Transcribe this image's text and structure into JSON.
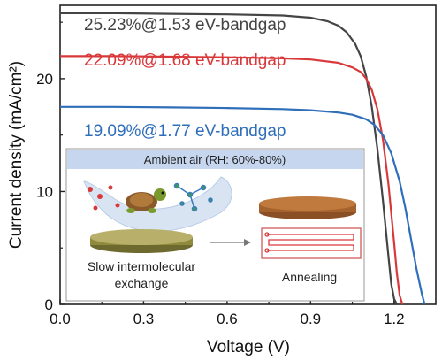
{
  "chart_data": {
    "type": "line",
    "xlabel": "Voltage (V)",
    "ylabel": "Current density (mA/cm²)",
    "xlim": [
      0.0,
      1.35
    ],
    "ylim": [
      0,
      26.5
    ],
    "xticks": [
      0.0,
      0.3,
      0.6,
      0.9,
      1.2
    ],
    "xtick_labels": [
      "0.0",
      "0.3",
      "0.6",
      "0.9",
      "1.2"
    ],
    "yticks": [
      0,
      10,
      20
    ],
    "ytick_labels": [
      "0",
      "10",
      "20"
    ],
    "grid": false,
    "series": [
      {
        "name": "25.23%@1.53 eV-bandgap",
        "color": "#444444",
        "x": [
          0.0,
          0.2,
          0.4,
          0.6,
          0.8,
          0.9,
          0.96,
          1.0,
          1.03,
          1.06,
          1.08,
          1.1,
          1.12,
          1.14,
          1.16,
          1.18,
          1.19,
          1.2,
          1.21
        ],
        "y": [
          25.8,
          25.8,
          25.75,
          25.7,
          25.6,
          25.4,
          25.1,
          24.7,
          24.1,
          23.1,
          22.0,
          20.2,
          17.5,
          13.8,
          9.2,
          4.2,
          1.8,
          0.5,
          0
        ]
      },
      {
        "name": "22.09%@1.68 eV-bandgap",
        "color": "#d9383a",
        "x": [
          0.0,
          0.2,
          0.4,
          0.6,
          0.8,
          0.9,
          1.0,
          1.05,
          1.08,
          1.1,
          1.12,
          1.14,
          1.16,
          1.18,
          1.2,
          1.21,
          1.22,
          1.23
        ],
        "y": [
          22.0,
          22.0,
          21.95,
          21.9,
          21.8,
          21.7,
          21.4,
          21.0,
          20.6,
          20.0,
          19.0,
          17.3,
          14.6,
          10.6,
          5.5,
          2.8,
          0.8,
          0
        ]
      },
      {
        "name": "19.09%@1.77 eV-bandgap",
        "color": "#2f6fba",
        "x": [
          0.0,
          0.2,
          0.4,
          0.6,
          0.8,
          0.9,
          1.0,
          1.05,
          1.1,
          1.13,
          1.16,
          1.19,
          1.22,
          1.24,
          1.26,
          1.28,
          1.3,
          1.31
        ],
        "y": [
          17.5,
          17.5,
          17.45,
          17.4,
          17.3,
          17.2,
          17.0,
          16.8,
          16.4,
          15.9,
          15.0,
          13.4,
          10.9,
          8.6,
          5.9,
          3.2,
          0.9,
          0
        ]
      }
    ]
  },
  "inset": {
    "banner": "Ambient air (RH: 60%-80%)",
    "left_caption_line1": "Slow intermolecular",
    "left_caption_line2": "exchange",
    "right_caption": "Annealing",
    "banner_color": "#c5d6ee",
    "turtle_color": "#7a9a2e"
  }
}
